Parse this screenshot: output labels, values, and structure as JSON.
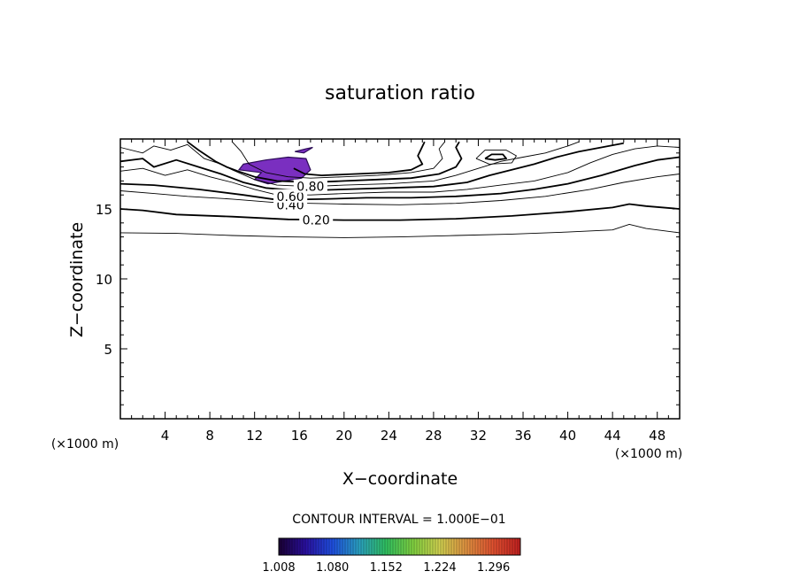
{
  "chart_data": {
    "type": "contour",
    "title": "saturation ratio",
    "xlabel": "X−coordinate",
    "ylabel": "Z−coordinate",
    "x_unit_label": "(×1000 m)",
    "z_unit_label": "(×1000 m)",
    "xlim": [
      0,
      50
    ],
    "ylim": [
      0,
      20
    ],
    "x_ticks": [
      4,
      8,
      12,
      16,
      20,
      24,
      28,
      32,
      36,
      40,
      44,
      48
    ],
    "y_ticks": [
      5,
      10,
      15
    ],
    "contour_interval_text": "CONTOUR INTERVAL = 1.000E−01",
    "contour_labels": [
      {
        "text": "0.20",
        "x": 17.5,
        "z": 14.2
      },
      {
        "text": "0.40",
        "x": 15.2,
        "z": 15.3
      },
      {
        "text": "0.60",
        "x": 15.2,
        "z": 15.9
      },
      {
        "text": "0.80",
        "x": 17.0,
        "z": 16.6
      }
    ],
    "colorbar": {
      "ticks": [
        "1.008",
        "1.080",
        "1.152",
        "1.224",
        "1.296"
      ],
      "min": 1.008,
      "max": 1.332,
      "colors": [
        "#1a0033",
        "#2a10a0",
        "#1f4fe0",
        "#2aa0c0",
        "#30c060",
        "#80d040",
        "#d0d050",
        "#e09040",
        "#e05030",
        "#c02020"
      ]
    },
    "supersaturated_regions": [
      {
        "fill_color": "#7a2fc0",
        "points": [
          [
            11.0,
            18.2
          ],
          [
            13.0,
            18.5
          ],
          [
            15.0,
            18.7
          ],
          [
            16.6,
            18.6
          ],
          [
            17.0,
            17.8
          ],
          [
            16.2,
            17.2
          ],
          [
            13.2,
            16.8
          ],
          [
            12.0,
            17.1
          ],
          [
            12.6,
            17.6
          ],
          [
            10.6,
            17.8
          ]
        ]
      },
      {
        "fill_color": "#7a2fc0",
        "points": [
          [
            15.6,
            19.1
          ],
          [
            16.6,
            19.3
          ],
          [
            17.2,
            19.4
          ],
          [
            16.4,
            19.0
          ]
        ]
      }
    ],
    "contours": [
      {
        "level": 0.1,
        "points": [
          [
            0,
            13.3
          ],
          [
            5,
            13.25
          ],
          [
            10,
            13.1
          ],
          [
            15,
            13.0
          ],
          [
            20,
            12.95
          ],
          [
            25,
            13.0
          ],
          [
            30,
            13.1
          ],
          [
            35,
            13.2
          ],
          [
            40,
            13.35
          ],
          [
            44,
            13.5
          ],
          [
            45.5,
            13.9
          ],
          [
            47,
            13.6
          ],
          [
            50,
            13.3
          ]
        ]
      },
      {
        "level": 0.2,
        "points": [
          [
            0,
            15.0
          ],
          [
            2,
            14.9
          ],
          [
            5,
            14.6
          ],
          [
            10,
            14.45
          ],
          [
            15,
            14.25
          ],
          [
            20,
            14.2
          ],
          [
            25,
            14.2
          ],
          [
            30,
            14.3
          ],
          [
            35,
            14.5
          ],
          [
            40,
            14.8
          ],
          [
            44,
            15.1
          ],
          [
            45.5,
            15.35
          ],
          [
            47,
            15.2
          ],
          [
            50,
            15.0
          ]
        ]
      },
      {
        "level": 0.3,
        "points": [
          [
            0,
            16.3
          ],
          [
            3,
            16.1
          ],
          [
            6,
            15.9
          ],
          [
            10,
            15.7
          ],
          [
            14,
            15.45
          ],
          [
            20,
            15.35
          ],
          [
            25,
            15.3
          ],
          [
            30,
            15.4
          ],
          [
            34,
            15.6
          ],
          [
            38,
            15.9
          ],
          [
            42,
            16.4
          ],
          [
            45,
            16.9
          ],
          [
            48,
            17.3
          ],
          [
            50,
            17.5
          ]
        ]
      },
      {
        "level": 0.4,
        "points": [
          [
            0,
            16.8
          ],
          [
            3,
            16.7
          ],
          [
            7,
            16.4
          ],
          [
            11,
            16.0
          ],
          [
            14,
            15.65
          ],
          [
            18,
            15.7
          ],
          [
            22,
            15.8
          ],
          [
            26,
            15.8
          ],
          [
            30,
            15.9
          ],
          [
            34,
            16.1
          ],
          [
            37,
            16.4
          ],
          [
            40,
            16.8
          ],
          [
            43,
            17.4
          ],
          [
            46,
            18.1
          ],
          [
            48,
            18.5
          ],
          [
            50,
            18.7
          ]
        ]
      },
      {
        "level": 0.5,
        "points": [
          [
            0,
            17.7
          ],
          [
            2,
            17.9
          ],
          [
            4,
            17.4
          ],
          [
            6,
            17.8
          ],
          [
            8,
            17.3
          ],
          [
            10,
            16.9
          ],
          [
            12,
            16.4
          ],
          [
            14,
            16.0
          ],
          [
            17,
            16.0
          ],
          [
            20,
            16.1
          ],
          [
            24,
            16.2
          ],
          [
            28,
            16.2
          ],
          [
            31,
            16.4
          ],
          [
            34,
            16.7
          ],
          [
            37,
            17.0
          ],
          [
            40,
            17.6
          ],
          [
            42,
            18.3
          ],
          [
            44,
            18.9
          ],
          [
            46,
            19.3
          ],
          [
            48,
            19.5
          ],
          [
            50,
            19.4
          ]
        ]
      },
      {
        "level": 0.6,
        "points": [
          [
            0,
            18.4
          ],
          [
            2,
            18.6
          ],
          [
            3,
            18.0
          ],
          [
            5,
            18.5
          ],
          [
            7,
            18.0
          ],
          [
            9,
            17.5
          ],
          [
            11,
            16.9
          ],
          [
            13,
            16.5
          ],
          [
            16,
            16.3
          ],
          [
            20,
            16.4
          ],
          [
            24,
            16.5
          ],
          [
            28,
            16.6
          ],
          [
            31,
            16.9
          ],
          [
            33,
            17.4
          ],
          [
            35,
            17.8
          ],
          [
            37,
            18.2
          ],
          [
            39,
            18.7
          ],
          [
            41,
            19.1
          ],
          [
            43,
            19.4
          ],
          [
            45,
            19.7
          ]
        ]
      },
      {
        "level": 0.7,
        "points": [
          [
            0,
            19.4
          ],
          [
            2,
            19.0
          ],
          [
            3,
            19.5
          ],
          [
            4.5,
            19.2
          ],
          [
            6,
            19.6
          ],
          [
            7.5,
            18.6
          ],
          [
            9,
            18.2
          ],
          [
            10,
            17.8
          ],
          [
            12,
            17.1
          ],
          [
            14,
            16.7
          ],
          [
            17,
            16.6
          ],
          [
            20,
            16.7
          ],
          [
            24,
            16.8
          ],
          [
            28,
            17.0
          ],
          [
            30,
            17.4
          ],
          [
            32,
            17.9
          ],
          [
            34,
            18.4
          ],
          [
            36,
            18.7
          ],
          [
            38,
            19.0
          ],
          [
            40,
            19.5
          ],
          [
            41,
            19.8
          ]
        ]
      },
      {
        "level": 0.8,
        "points": [
          [
            6,
            19.8
          ],
          [
            7,
            19.2
          ],
          [
            8.5,
            18.4
          ],
          [
            9.5,
            18.0
          ],
          [
            10.5,
            17.7
          ],
          [
            12,
            17.3
          ],
          [
            14,
            17.0
          ],
          [
            17,
            16.9
          ],
          [
            20,
            17.0
          ],
          [
            23,
            17.1
          ],
          [
            26,
            17.2
          ],
          [
            28.5,
            17.5
          ],
          [
            30,
            18.0
          ],
          [
            30.5,
            18.6
          ],
          [
            30,
            19.4
          ],
          [
            30.3,
            19.8
          ]
        ]
      },
      {
        "level": 0.9,
        "points": [
          [
            10,
            19.8
          ],
          [
            10.8,
            19.1
          ],
          [
            11.5,
            18.2
          ],
          [
            13,
            17.6
          ],
          [
            15,
            17.3
          ],
          [
            17,
            17.2
          ],
          [
            20,
            17.3
          ],
          [
            23,
            17.4
          ],
          [
            26,
            17.6
          ],
          [
            28,
            17.9
          ],
          [
            28.8,
            18.6
          ],
          [
            28.5,
            19.3
          ],
          [
            29,
            19.8
          ]
        ]
      },
      {
        "level": 1.0,
        "points": [
          [
            15.5,
            17.9
          ],
          [
            16.5,
            17.5
          ],
          [
            18,
            17.4
          ],
          [
            21,
            17.5
          ],
          [
            24,
            17.6
          ],
          [
            26,
            17.8
          ],
          [
            27,
            18.2
          ],
          [
            26.6,
            18.8
          ],
          [
            27.2,
            19.8
          ]
        ]
      },
      {
        "level": 1.0,
        "points": [
          [
            32.6,
            18.6
          ],
          [
            33.5,
            18.5
          ],
          [
            34.5,
            18.6
          ],
          [
            34.2,
            18.9
          ],
          [
            33.2,
            18.9
          ],
          [
            32.6,
            18.6
          ]
        ]
      },
      {
        "level": 0.9,
        "points": [
          [
            31.8,
            18.6
          ],
          [
            33.0,
            18.2
          ],
          [
            35.0,
            18.3
          ],
          [
            35.4,
            18.8
          ],
          [
            34.5,
            19.2
          ],
          [
            32.6,
            19.2
          ],
          [
            31.8,
            18.6
          ]
        ]
      }
    ]
  }
}
